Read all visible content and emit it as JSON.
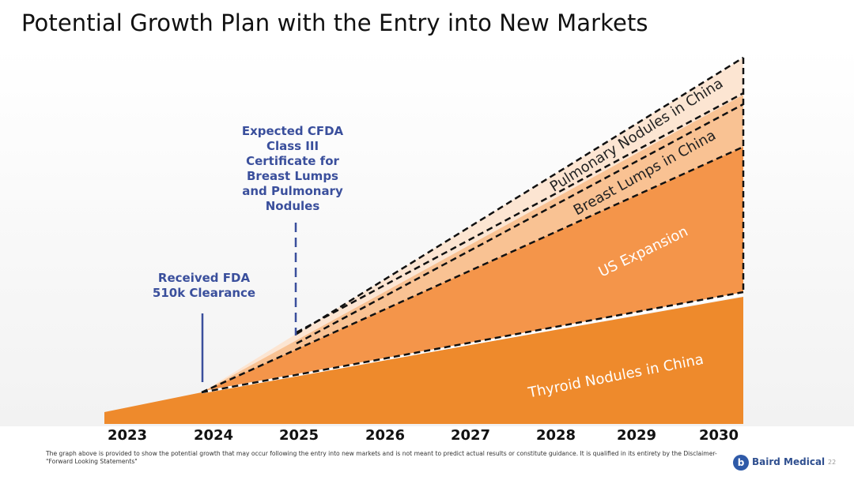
{
  "title": "Potential Growth Plan with the Entry into New Markets",
  "annotations": {
    "fda": "Received FDA 510k Clearance",
    "cfda": "Expected CFDA Class III Certificate for Breast Lumps and Pulmonary Nodules"
  },
  "segments": {
    "thyroid": "Thyroid Nodules in China",
    "us": "US Expansion",
    "breast": "Breast Lumps in China",
    "pulmonary": "Pulmonary Nodules in China"
  },
  "years": [
    "2023",
    "2024",
    "2025",
    "2026",
    "2027",
    "2028",
    "2029",
    "2030"
  ],
  "footnote": "The graph above is provided to show the potential growth that may occur following the entry into new markets and is not meant to predict actual results or constitute guidance. It is qualified in its entirety by the Disclaimer-\"Forward Looking Statements\"",
  "brand": {
    "name": "Baird Medical",
    "icon_letter": "b"
  },
  "page_number": "22",
  "colors": {
    "thyroid": "#ee8a2c",
    "us": "#f4954a",
    "breast": "#f9c293",
    "pulmonary": "#fce5d2",
    "annotation": "#3a4f9c"
  }
}
